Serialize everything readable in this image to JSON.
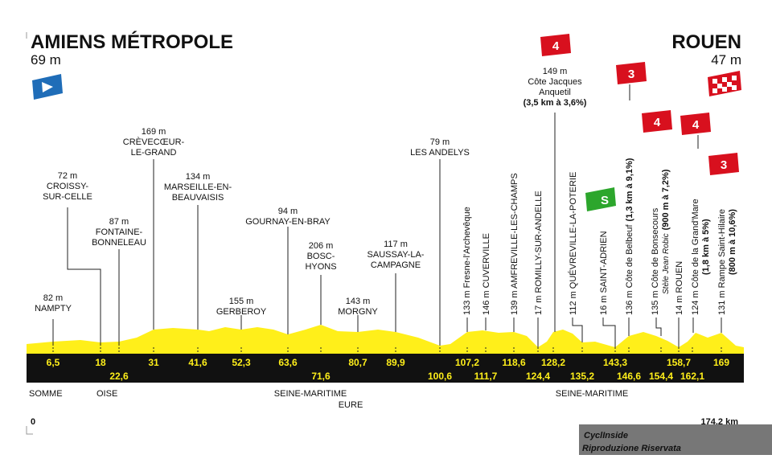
{
  "header": {
    "start": {
      "name": "AMIENS MÉTROPOLE",
      "altitude": "69 m"
    },
    "finish": {
      "name": "ROUEN",
      "altitude": "47 m"
    }
  },
  "waypoints": [
    {
      "altitude": "82 m",
      "lines": [
        "NAMPTY"
      ]
    },
    {
      "altitude": "72 m",
      "lines": [
        "CROISSY-",
        "SUR-CELLE"
      ]
    },
    {
      "altitude": "87 m",
      "lines": [
        "FONTAINE-",
        "BONNELEAU"
      ]
    },
    {
      "altitude": "169 m",
      "lines": [
        "CRÈVECŒUR-",
        "LE-GRAND"
      ]
    },
    {
      "altitude": "134 m",
      "lines": [
        "MARSEILLE-EN-",
        "BEAUVAISIS"
      ]
    },
    {
      "altitude": "155 m",
      "lines": [
        "GERBEROY"
      ]
    },
    {
      "altitude": "94 m",
      "lines": [
        "GOURNAY-EN-BRAY"
      ]
    },
    {
      "altitude": "206 m",
      "lines": [
        "BOSC-",
        "HYONS"
      ]
    },
    {
      "altitude": "143 m",
      "lines": [
        "MORGNY"
      ]
    },
    {
      "altitude": "117 m",
      "lines": [
        "SAUSSAY-LA-",
        "CAMPAGNE"
      ]
    },
    {
      "altitude": "79 m",
      "lines": [
        "LES ANDELYS"
      ]
    },
    {
      "altitude": "149 m",
      "lines": [
        "Côte Jacques",
        "Anquetil",
        "(3,5 km à 3,6%)"
      ]
    }
  ],
  "vertical_waypoints": [
    {
      "label": "133 m Fresne-l'Archevêque"
    },
    {
      "label": "146 m CUVERVILLE"
    },
    {
      "label": "139 m AMFREVILLE-LES-CHAMPS"
    },
    {
      "label": "17 m ROMILLY-SUR-ANDELLE"
    },
    {
      "label": "112 m QUÉVREVILLE-LA-POTERIE"
    },
    {
      "label": "16 m SAINT-ADRIEN"
    },
    {
      "label": "136 m Côte de Belbeuf",
      "detail": "(1,3 km à 9,1%)"
    },
    {
      "label": "135 m Côte de Bonsecours",
      "note": "Stèle Jean Robic",
      "detail": "(900 m à 7,2%)"
    },
    {
      "label": "14 m ROUEN"
    },
    {
      "label": "124 m Côte de la Grand'Mare",
      "detail": "(1,8 km à 5%)"
    },
    {
      "label": "131 m Rampe Saint-Hilaire",
      "detail": "(800 m à 10,6%)"
    }
  ],
  "km_marks": [
    "6,5",
    "18",
    "22,6",
    "31",
    "41,6",
    "52,3",
    "63,6",
    "71,6",
    "80,7",
    "89,9",
    "100,6",
    "107,2",
    "111,7",
    "118,6",
    "124,4",
    "128,2",
    "135,2",
    "143,3",
    "146,6",
    "154,4",
    "158,7",
    "162,1",
    "169"
  ],
  "regions": [
    "SOMME",
    "OISE",
    "SEINE-MARITIME",
    "EURE",
    "SEINE-MARITIME"
  ],
  "distance": {
    "start": "0",
    "end": "174,2 km"
  },
  "climbs": [
    "4",
    "3",
    "4",
    "4",
    "3"
  ],
  "sprint": "S",
  "watermark": {
    "brand": "CyclInside",
    "notice": "Riproduzione Riservata"
  }
}
